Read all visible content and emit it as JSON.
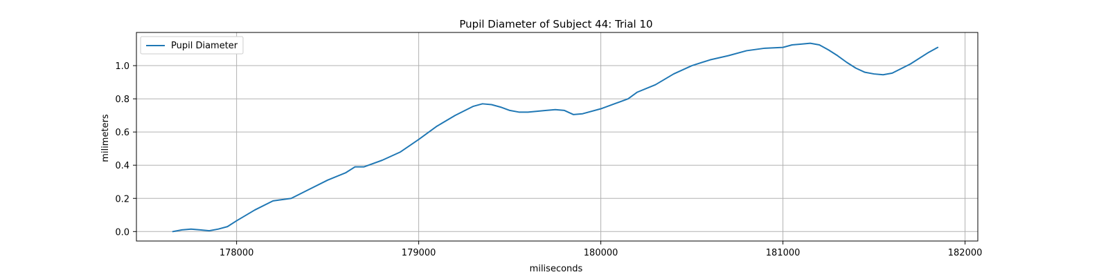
{
  "chart_data": {
    "type": "line",
    "title": "Pupil Diameter of Subject 44: Trial 10",
    "xlabel": "miliseconds",
    "ylabel": "milimeters",
    "xlim": [
      177450,
      182070
    ],
    "ylim": [
      -0.057,
      1.2
    ],
    "xticks": [
      178000,
      179000,
      180000,
      181000,
      182000
    ],
    "xtick_labels": [
      "178000",
      "179000",
      "180000",
      "181000",
      "182000"
    ],
    "yticks": [
      0.0,
      0.2,
      0.4,
      0.6,
      0.8,
      1.0
    ],
    "ytick_labels": [
      "0.0",
      "0.2",
      "0.4",
      "0.6",
      "0.8",
      "1.0"
    ],
    "grid": true,
    "legend": {
      "location": "upper-left",
      "entries": [
        "Pupil Diameter"
      ]
    },
    "colors": {
      "line": "#1f77b4",
      "grid": "#b0b0b0",
      "axes": "#000000"
    },
    "series": [
      {
        "name": "Pupil Diameter",
        "x": [
          177650,
          177700,
          177750,
          177800,
          177850,
          177900,
          177950,
          178000,
          178100,
          178200,
          178300,
          178400,
          178500,
          178600,
          178650,
          178700,
          178800,
          178900,
          179000,
          179100,
          179200,
          179300,
          179350,
          179400,
          179450,
          179500,
          179550,
          179600,
          179650,
          179700,
          179750,
          179800,
          179850,
          179900,
          180000,
          180100,
          180150,
          180200,
          180300,
          180400,
          180500,
          180600,
          180700,
          180800,
          180900,
          181000,
          181050,
          181100,
          181150,
          181200,
          181250,
          181300,
          181350,
          181400,
          181450,
          181500,
          181550,
          181600,
          181700,
          181800,
          181850
        ],
        "values": [
          0.0,
          0.01,
          0.015,
          0.01,
          0.005,
          0.015,
          0.03,
          0.065,
          0.13,
          0.185,
          0.2,
          0.255,
          0.31,
          0.355,
          0.39,
          0.39,
          0.43,
          0.48,
          0.555,
          0.635,
          0.7,
          0.755,
          0.77,
          0.765,
          0.75,
          0.73,
          0.72,
          0.72,
          0.725,
          0.73,
          0.735,
          0.73,
          0.705,
          0.71,
          0.74,
          0.78,
          0.8,
          0.84,
          0.885,
          0.95,
          1.0,
          1.035,
          1.06,
          1.09,
          1.105,
          1.11,
          1.125,
          1.13,
          1.135,
          1.125,
          1.095,
          1.06,
          1.02,
          0.985,
          0.96,
          0.95,
          0.945,
          0.955,
          1.01,
          1.08,
          1.11
        ]
      }
    ]
  }
}
